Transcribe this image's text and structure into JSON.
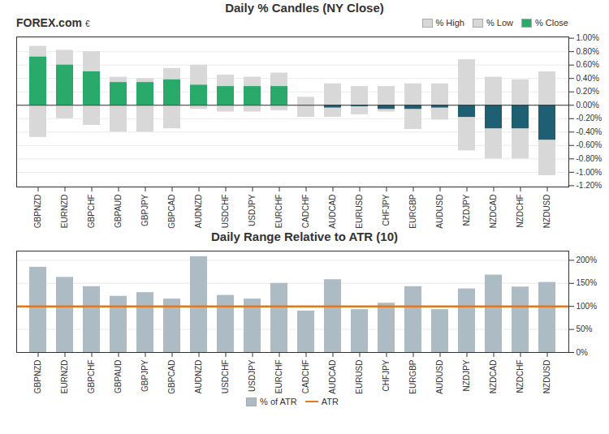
{
  "chart_data": [
    {
      "type": "bar",
      "title": "Daily % Candles (NY Close)",
      "categories": [
        "GBPNZD",
        "EURNZD",
        "GBPCHF",
        "GBPAUD",
        "GBPJPY",
        "GBPCAD",
        "AUDNZD",
        "USDCHF",
        "USDJPY",
        "EURCHF",
        "CADCHF",
        "AUDCAD",
        "EURUSD",
        "CHFJPY",
        "EURGBP",
        "AUDUSD",
        "NZDJPY",
        "NZDCAD",
        "NZDCHF",
        "NZDUSD"
      ],
      "series": [
        {
          "name": "% High",
          "color": "#d8d8d8",
          "values": [
            0.88,
            0.82,
            0.8,
            0.42,
            0.4,
            0.55,
            0.6,
            0.45,
            0.42,
            0.48,
            0.12,
            0.32,
            0.28,
            0.28,
            0.32,
            0.32,
            0.68,
            0.42,
            0.38,
            0.5
          ]
        },
        {
          "name": "% Low",
          "color": "#d8d8d8",
          "values": [
            -0.48,
            -0.2,
            -0.3,
            -0.4,
            -0.4,
            -0.35,
            -0.06,
            -0.1,
            -0.1,
            -0.08,
            -0.18,
            -0.18,
            -0.14,
            -0.1,
            -0.36,
            -0.22,
            -0.68,
            -0.8,
            -0.8,
            -1.05
          ]
        },
        {
          "name": "% Close",
          "color": "#2aaa6a",
          "values": [
            0.72,
            0.6,
            0.5,
            0.34,
            0.34,
            0.38,
            0.3,
            0.28,
            0.28,
            0.28,
            0.0,
            -0.04,
            -0.02,
            -0.06,
            -0.06,
            -0.04,
            -0.18,
            -0.35,
            -0.35,
            -0.52
          ],
          "colors": [
            "#2aaa6a",
            "#2aaa6a",
            "#2aaa6a",
            "#2aaa6a",
            "#2aaa6a",
            "#2aaa6a",
            "#2aaa6a",
            "#2aaa6a",
            "#2aaa6a",
            "#2aaa6a",
            "#2aaa6a",
            "#1e5f74",
            "#1e5f74",
            "#1e5f74",
            "#1e5f74",
            "#1e5f74",
            "#1e5f74",
            "#1e5f74",
            "#1e5f74",
            "#1e5f74"
          ]
        }
      ],
      "ylim": [
        -1.22,
        1.02
      ],
      "yticks": [
        {
          "value": -1.2,
          "label": "-1.20%"
        },
        {
          "value": -1.0,
          "label": "-1.00%"
        },
        {
          "value": -0.8,
          "label": "-0.80%"
        },
        {
          "value": -0.6,
          "label": "-0.60%"
        },
        {
          "value": -0.4,
          "label": "-0.40%"
        },
        {
          "value": -0.2,
          "label": "-0.20%"
        },
        {
          "value": 0,
          "label": "0.00%"
        },
        {
          "value": 0.2,
          "label": "0.20%"
        },
        {
          "value": 0.4,
          "label": "0.40%"
        },
        {
          "value": 0.6,
          "label": "0.60%"
        },
        {
          "value": 0.8,
          "label": "0.80%"
        },
        {
          "value": 1.0,
          "label": "1.00%"
        }
      ],
      "grid": true,
      "legend": "upper right",
      "annotations": [
        "FOREX.com",
        "€"
      ]
    },
    {
      "type": "bar",
      "title": "Daily Range Relative to ATR (10)",
      "categories": [
        "GBPNZD",
        "EURNZD",
        "GBPCHF",
        "GBPAUD",
        "GBPJPY",
        "GBPCAD",
        "AUDNZD",
        "USDCHF",
        "USDJPY",
        "EURCHF",
        "CADCHF",
        "AUDCAD",
        "EURUSD",
        "CHFJPY",
        "EURGBP",
        "AUDUSD",
        "NZDJPY",
        "NZDCAD",
        "NZDCHF",
        "NZDUSD"
      ],
      "series": [
        {
          "name": "% of ATR",
          "color": "#adbbc4",
          "values": [
            185,
            163,
            143,
            122,
            130,
            116,
            208,
            124,
            116,
            150,
            90,
            158,
            93,
            107,
            143,
            93,
            138,
            168,
            142,
            152
          ]
        },
        {
          "name": "ATR",
          "type": "line",
          "color": "#e07820",
          "value": 100
        }
      ],
      "ylim": [
        0,
        220
      ],
      "yticks": [
        {
          "value": 0,
          "label": "0%"
        },
        {
          "value": 50,
          "label": "50%"
        },
        {
          "value": 100,
          "label": "100%"
        },
        {
          "value": 150,
          "label": "150%"
        },
        {
          "value": 200,
          "label": "200%"
        }
      ],
      "grid": true,
      "legend": "bottom"
    }
  ]
}
